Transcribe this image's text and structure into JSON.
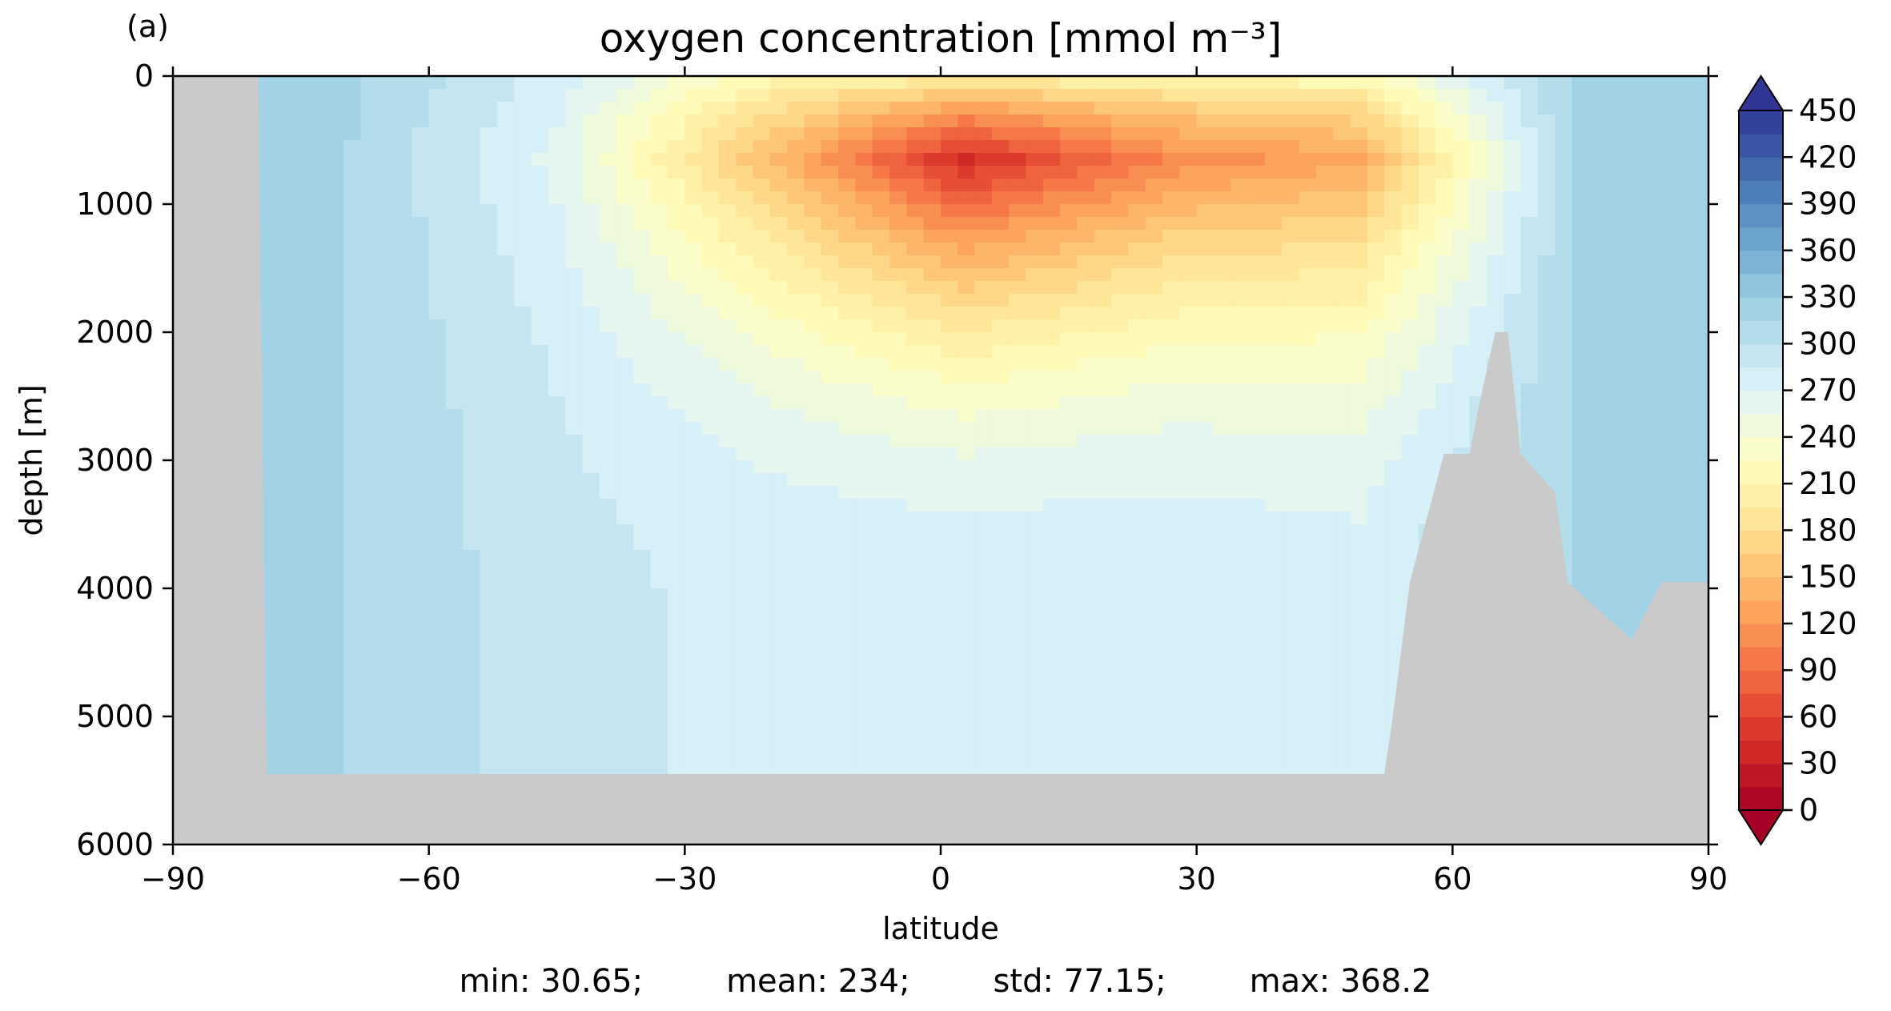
{
  "panel_label": "(a)",
  "chart_data": {
    "type": "heatmap",
    "title": "oxygen concentration [mmol m⁻³]",
    "xlabel": "latitude",
    "ylabel": "depth [m]",
    "xlim": [
      -90,
      90
    ],
    "ylim": [
      6000,
      0
    ],
    "x_ticks": [
      -90,
      -60,
      -30,
      0,
      30,
      60,
      90
    ],
    "x_tick_labels": [
      "−90",
      "−60",
      "−30",
      "0",
      "30",
      "60",
      "90"
    ],
    "y_ticks": [
      0,
      1000,
      2000,
      3000,
      4000,
      5000,
      6000
    ],
    "y_tick_labels": [
      "0",
      "1000",
      "2000",
      "3000",
      "4000",
      "5000",
      "6000"
    ],
    "colorbar": {
      "min": 0,
      "max": 450,
      "step": 15,
      "extend": "both",
      "colormap": "RdYlBu",
      "ticks": [
        0,
        30,
        60,
        90,
        120,
        150,
        180,
        210,
        240,
        270,
        300,
        330,
        360,
        390,
        420,
        450
      ],
      "tick_labels": [
        "0",
        "30",
        "60",
        "90",
        "120",
        "150",
        "180",
        "210",
        "240",
        "270",
        "300",
        "330",
        "360",
        "390",
        "420",
        "450"
      ]
    },
    "land_color": "#cacaca",
    "bathymetry_depth_m": [
      {
        "lat": -90,
        "depth": 0
      },
      {
        "lat": -80,
        "depth": 0
      },
      {
        "lat": -79,
        "depth": 5450
      },
      {
        "lat": -50,
        "depth": 5450
      },
      {
        "lat": -40,
        "depth": 5450
      },
      {
        "lat": -39,
        "depth": 5450
      },
      {
        "lat": -37,
        "depth": 5450
      },
      {
        "lat": 52,
        "depth": 5450
      },
      {
        "lat": 53,
        "depth": 5000
      },
      {
        "lat": 55,
        "depth": 3950
      },
      {
        "lat": 59,
        "depth": 2950
      },
      {
        "lat": 62,
        "depth": 2950
      },
      {
        "lat": 63,
        "depth": 2600
      },
      {
        "lat": 65,
        "depth": 2000
      },
      {
        "lat": 66.5,
        "depth": 2000
      },
      {
        "lat": 68,
        "depth": 2950
      },
      {
        "lat": 72,
        "depth": 3250
      },
      {
        "lat": 73.5,
        "depth": 3950
      },
      {
        "lat": 81,
        "depth": 4400
      },
      {
        "lat": 84.5,
        "depth": 3950
      },
      {
        "lat": 90,
        "depth": 3950
      }
    ],
    "sections": [
      {
        "lat_range": [
          -79,
          -60
        ],
        "surface_to_bottom": [
          320,
          315,
          315
        ]
      },
      {
        "lat_range": [
          -60,
          -30
        ],
        "surface_to_bottom": [
          280,
          265,
          290
        ]
      },
      {
        "lat_range": [
          -30,
          -10
        ],
        "surface_to_bottom": [
          220,
          150,
          280
        ]
      },
      {
        "lat_range": [
          -10,
          15
        ],
        "surface_to_bottom": [
          220,
          40,
          280
        ]
      },
      {
        "lat_range": [
          15,
          40
        ],
        "surface_to_bottom": [
          220,
          110,
          280
        ]
      },
      {
        "lat_range": [
          40,
          58
        ],
        "surface_to_bottom": [
          230,
          130,
          275
        ]
      },
      {
        "lat_range": [
          58,
          90
        ],
        "surface_to_bottom": [
          320,
          315,
          315
        ]
      }
    ]
  },
  "stats": {
    "min": "min: 30.65;",
    "mean": "mean: 234;",
    "std": "std: 77.15;",
    "max": "max: 368.2"
  }
}
